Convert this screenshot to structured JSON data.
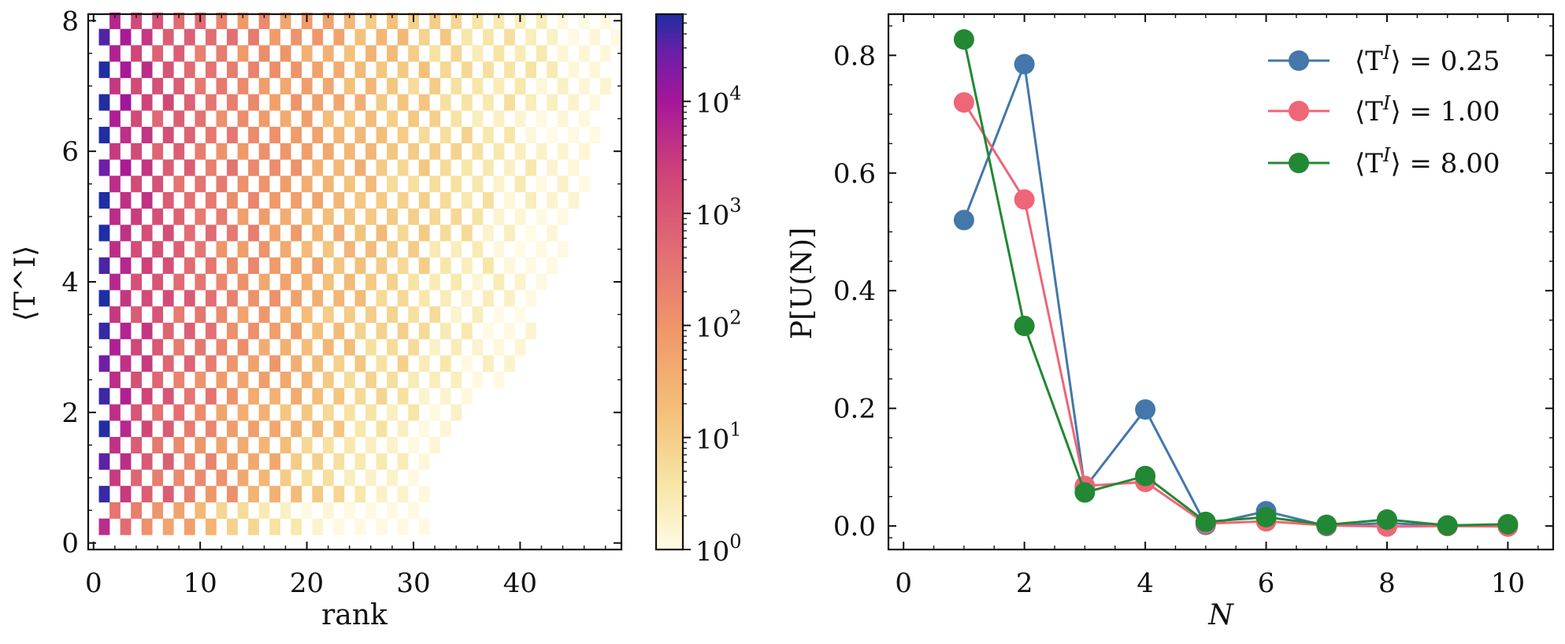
{
  "chart_data": [
    {
      "type": "heatmap",
      "xlabel": "rank",
      "ylabel": "⟨T^I⟩",
      "xlim": [
        -0.5,
        49.5
      ],
      "ylim": [
        -0.1,
        8.1
      ],
      "x_ticks": [
        0,
        10,
        20,
        30,
        40
      ],
      "x_tick_labels": [
        "0",
        "10",
        "20",
        "30",
        "40"
      ],
      "y_ticks": [
        0,
        2,
        4,
        6,
        8
      ],
      "y_tick_labels": [
        "0",
        "2",
        "4",
        "6",
        "8"
      ],
      "bins": {
        "rank_min": 1,
        "rank_max": 49,
        "rank_step": 1,
        "T_levels_min": 0.25,
        "T_levels_max": 8.0,
        "T_step": 0.25
      },
      "rank_extent_by_T": {
        "T": [
          0.25,
          1,
          2,
          3,
          4,
          5,
          6,
          7,
          8
        ],
        "max_rank": [
          31,
          31,
          35,
          40,
          42,
          45,
          46,
          48,
          49
        ]
      },
      "count_range": [
        1,
        60000
      ],
      "colorbar": {
        "scale": "log",
        "colormap": "plasma_r",
        "tick_labels": [
          "10^0",
          "10^1",
          "10^2",
          "10^3",
          "10^4"
        ],
        "tick_values": [
          1,
          10,
          100,
          1000,
          10000
        ]
      }
    },
    {
      "type": "line",
      "xlabel": "N",
      "ylabel": "P[U(N)]",
      "xlim": [
        -0.25,
        10.75
      ],
      "ylim": [
        -0.04,
        0.87
      ],
      "x_ticks": [
        0,
        2,
        4,
        6,
        8,
        10
      ],
      "x_tick_labels": [
        "0",
        "2",
        "4",
        "6",
        "8",
        "10"
      ],
      "y_ticks": [
        0.0,
        0.2,
        0.4,
        0.6,
        0.8
      ],
      "y_tick_labels": [
        "0.0",
        "0.2",
        "0.4",
        "0.6",
        "0.8"
      ],
      "legend_position": "top-right",
      "x": [
        1,
        2,
        3,
        4,
        5,
        6,
        7,
        8,
        9,
        10
      ],
      "series": [
        {
          "name": "⟨T^I⟩ = 0.25",
          "color": "#4477aa",
          "values": [
            0.52,
            0.785,
            0.065,
            0.198,
            0.002,
            0.025,
            0.0,
            0.005,
            0.0,
            0.0
          ]
        },
        {
          "name": "⟨T^I⟩ = 1.00",
          "color": "#ee6677",
          "values": [
            0.72,
            0.555,
            0.068,
            0.075,
            0.004,
            0.008,
            0.001,
            -0.001,
            0.0,
            -0.001
          ]
        },
        {
          "name": "⟨T^I⟩ = 8.00",
          "color": "#228833",
          "values": [
            0.827,
            0.34,
            0.057,
            0.085,
            0.007,
            0.015,
            0.002,
            0.011,
            0.001,
            0.003
          ]
        }
      ]
    }
  ],
  "legend_labels": {
    "prefix": "⟨T",
    "sup": "I",
    "suffix_025": "⟩ = 0.25",
    "suffix_100": "⟩ = 1.00",
    "suffix_800": "⟩ = 8.00"
  }
}
